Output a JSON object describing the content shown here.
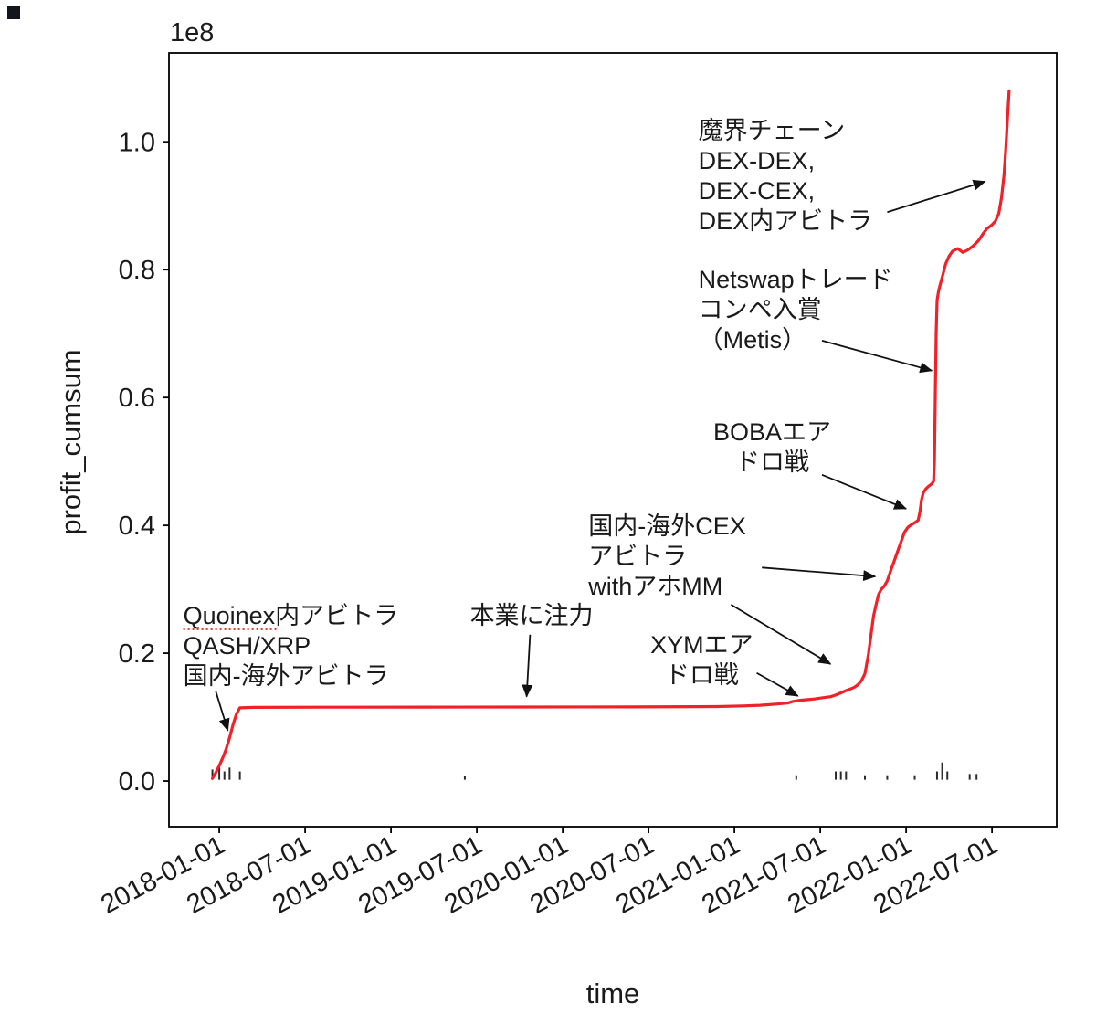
{
  "chart_data": {
    "type": "line",
    "title": "",
    "xlabel": "time",
    "ylabel": "profit_cumsum",
    "offset_label": "1e8",
    "grid": false,
    "legend": "none",
    "line_color": "#f02128",
    "axis_color": "#000000",
    "xlim": [
      2017.707,
      2022.877
    ],
    "ylim": [
      -0.0714,
      1.139
    ],
    "x_ticks": [
      {
        "value": 2018.0,
        "label": "2018-01-01"
      },
      {
        "value": 2018.5,
        "label": "2018-07-01"
      },
      {
        "value": 2019.0,
        "label": "2019-01-01"
      },
      {
        "value": 2019.5,
        "label": "2019-07-01"
      },
      {
        "value": 2020.0,
        "label": "2020-01-01"
      },
      {
        "value": 2020.5,
        "label": "2020-07-01"
      },
      {
        "value": 2021.0,
        "label": "2021-01-01"
      },
      {
        "value": 2021.5,
        "label": "2021-07-01"
      },
      {
        "value": 2022.0,
        "label": "2022-01-01"
      },
      {
        "value": 2022.5,
        "label": "2022-07-01"
      }
    ],
    "y_ticks": [
      {
        "value": 0.0,
        "label": "0.0"
      },
      {
        "value": 0.2,
        "label": "0.2"
      },
      {
        "value": 0.4,
        "label": "0.4"
      },
      {
        "value": 0.6,
        "label": "0.6"
      },
      {
        "value": 0.8,
        "label": "0.8"
      },
      {
        "value": 1.0,
        "label": "1.0"
      }
    ],
    "series": [
      {
        "name": "profit_cumsum",
        "points": [
          [
            2017.96,
            0.004
          ],
          [
            2017.98,
            0.013
          ],
          [
            2018.0,
            0.024
          ],
          [
            2018.02,
            0.036
          ],
          [
            2018.04,
            0.05
          ],
          [
            2018.06,
            0.068
          ],
          [
            2018.08,
            0.088
          ],
          [
            2018.1,
            0.105
          ],
          [
            2018.12,
            0.1145
          ],
          [
            2018.2,
            0.1152
          ],
          [
            2018.6,
            0.1155
          ],
          [
            2019.2,
            0.1157
          ],
          [
            2019.8,
            0.1158
          ],
          [
            2020.4,
            0.116
          ],
          [
            2020.9,
            0.1165
          ],
          [
            2021.05,
            0.1175
          ],
          [
            2021.15,
            0.1185
          ],
          [
            2021.25,
            0.1205
          ],
          [
            2021.31,
            0.122
          ],
          [
            2021.34,
            0.1245
          ],
          [
            2021.37,
            0.126
          ],
          [
            2021.42,
            0.1272
          ],
          [
            2021.47,
            0.1285
          ],
          [
            2021.52,
            0.1305
          ],
          [
            2021.56,
            0.132
          ],
          [
            2021.59,
            0.1345
          ],
          [
            2021.62,
            0.138
          ],
          [
            2021.65,
            0.1415
          ],
          [
            2021.68,
            0.1445
          ],
          [
            2021.7,
            0.147
          ],
          [
            2021.72,
            0.151
          ],
          [
            2021.74,
            0.157
          ],
          [
            2021.76,
            0.168
          ],
          [
            2021.78,
            0.198
          ],
          [
            2021.795,
            0.228
          ],
          [
            2021.81,
            0.258
          ],
          [
            2021.825,
            0.276
          ],
          [
            2021.84,
            0.292
          ],
          [
            2021.855,
            0.3
          ],
          [
            2021.87,
            0.304
          ],
          [
            2021.89,
            0.313
          ],
          [
            2021.91,
            0.329
          ],
          [
            2021.93,
            0.344
          ],
          [
            2021.95,
            0.359
          ],
          [
            2021.97,
            0.374
          ],
          [
            2021.99,
            0.389
          ],
          [
            2022.01,
            0.397
          ],
          [
            2022.03,
            0.401
          ],
          [
            2022.05,
            0.404
          ],
          [
            2022.07,
            0.408
          ],
          [
            2022.08,
            0.421
          ],
          [
            2022.09,
            0.44
          ],
          [
            2022.1,
            0.451
          ],
          [
            2022.115,
            0.457
          ],
          [
            2022.13,
            0.461
          ],
          [
            2022.15,
            0.465
          ],
          [
            2022.16,
            0.469
          ],
          [
            2022.165,
            0.5
          ],
          [
            2022.17,
            0.61
          ],
          [
            2022.175,
            0.7
          ],
          [
            2022.18,
            0.752
          ],
          [
            2022.19,
            0.768
          ],
          [
            2022.21,
            0.788
          ],
          [
            2022.23,
            0.809
          ],
          [
            2022.25,
            0.821
          ],
          [
            2022.27,
            0.829
          ],
          [
            2022.3,
            0.833
          ],
          [
            2022.33,
            0.827
          ],
          [
            2022.36,
            0.831
          ],
          [
            2022.39,
            0.837
          ],
          [
            2022.42,
            0.845
          ],
          [
            2022.45,
            0.857
          ],
          [
            2022.47,
            0.864
          ],
          [
            2022.5,
            0.87
          ],
          [
            2022.52,
            0.876
          ],
          [
            2022.54,
            0.888
          ],
          [
            2022.555,
            0.912
          ],
          [
            2022.57,
            0.948
          ],
          [
            2022.58,
            0.988
          ],
          [
            2022.59,
            1.034
          ],
          [
            2022.6,
            1.08
          ]
        ]
      }
    ],
    "rug_marks": [
      [
        2017.96,
        0.016
      ],
      [
        2018.0,
        0.024
      ],
      [
        2018.03,
        0.013
      ],
      [
        2018.06,
        0.019
      ],
      [
        2018.12,
        0.013
      ],
      [
        2019.43,
        0.006
      ],
      [
        2021.36,
        0.007
      ],
      [
        2021.59,
        0.013
      ],
      [
        2021.62,
        0.013
      ],
      [
        2021.65,
        0.013
      ],
      [
        2021.76,
        0.007
      ],
      [
        2021.89,
        0.007
      ],
      [
        2022.05,
        0.007
      ],
      [
        2022.18,
        0.013
      ],
      [
        2022.21,
        0.027
      ],
      [
        2022.24,
        0.013
      ],
      [
        2022.37,
        0.009
      ],
      [
        2022.41,
        0.009
      ]
    ],
    "annotations": [
      {
        "id": "quoinex-arb",
        "align": "left",
        "x": 2017.79,
        "y": 0.246,
        "lines": [
          "Quoinex内アビトラ",
          "QASH/XRP",
          "国内-海外アビトラ"
        ],
        "underline": {
          "line": 0,
          "chars": 7,
          "color": "#e0301e"
        },
        "arrows": [
          {
            "x1": 2017.98,
            "y1": 0.14,
            "x2": 2018.05,
            "y2": 0.079
          }
        ]
      },
      {
        "id": "focus-on-main-job",
        "align": "left",
        "x": 2019.46,
        "y": 0.246,
        "lines": [
          "本業に注力"
        ],
        "arrows": [
          {
            "x1": 2019.81,
            "y1": 0.229,
            "x2": 2019.79,
            "y2": 0.132
          }
        ]
      },
      {
        "id": "xym-airdrop",
        "align": "center",
        "x": 2020.81,
        "y": 0.2,
        "lines": [
          "XYMエア",
          "ドロ戦"
        ],
        "arrows": [
          {
            "x1": 2021.13,
            "y1": 0.169,
            "x2": 2021.37,
            "y2": 0.133
          }
        ]
      },
      {
        "id": "domestic-overseas-cex-arb",
        "align": "left",
        "x": 2020.15,
        "y": 0.386,
        "lines": [
          "国内-海外CEX",
          "アビトラ",
          "withアホMM"
        ],
        "arrows": [
          {
            "x1": 2021.16,
            "y1": 0.334,
            "x2": 2021.82,
            "y2": 0.32
          },
          {
            "x1": 2020.98,
            "y1": 0.276,
            "x2": 2021.56,
            "y2": 0.183
          }
        ]
      },
      {
        "id": "boba-airdrop",
        "align": "center",
        "x": 2021.22,
        "y": 0.533,
        "lines": [
          "BOBAエア",
          "ドロ戦"
        ],
        "arrows": [
          {
            "x1": 2021.51,
            "y1": 0.479,
            "x2": 2022.0,
            "y2": 0.426
          }
        ]
      },
      {
        "id": "netswap-trade-competition",
        "align": "left",
        "x": 2020.79,
        "y": 0.772,
        "lines": [
          "Netswapトレード",
          "コンペ入賞",
          "（Metis）"
        ],
        "arrows": [
          {
            "x1": 2021.51,
            "y1": 0.689,
            "x2": 2022.15,
            "y2": 0.642
          }
        ]
      },
      {
        "id": "makai-chain-arb",
        "align": "left",
        "x": 2020.79,
        "y": 1.005,
        "lines": [
          "魔界チェーン",
          "DEX-DEX,",
          "DEX-CEX,",
          "DEX内アビトラ"
        ],
        "arrows": [
          {
            "x1": 2021.89,
            "y1": 0.89,
            "x2": 2022.46,
            "y2": 0.938
          }
        ]
      }
    ]
  }
}
